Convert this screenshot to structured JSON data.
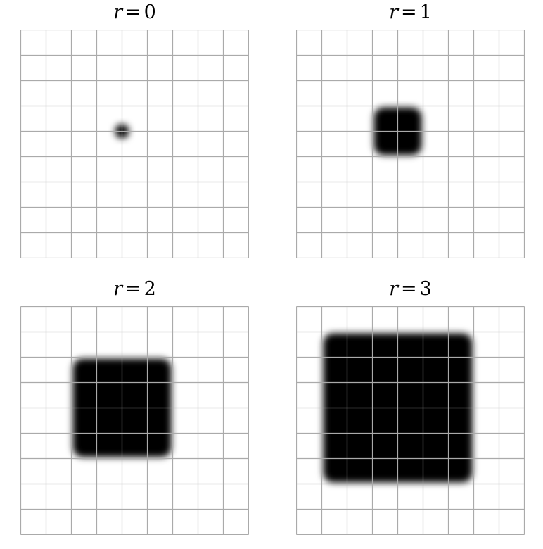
{
  "panels": [
    {
      "variable": "r",
      "operator": "=",
      "value": "0",
      "radius": 0
    },
    {
      "variable": "r",
      "operator": "=",
      "value": "1",
      "radius": 1
    },
    {
      "variable": "r",
      "operator": "=",
      "value": "2",
      "radius": 2
    },
    {
      "variable": "r",
      "operator": "=",
      "value": "3",
      "radius": 3
    }
  ],
  "grid": {
    "cells": 9,
    "line_color": "#aaaaaa",
    "fill_color": "#000000"
  }
}
